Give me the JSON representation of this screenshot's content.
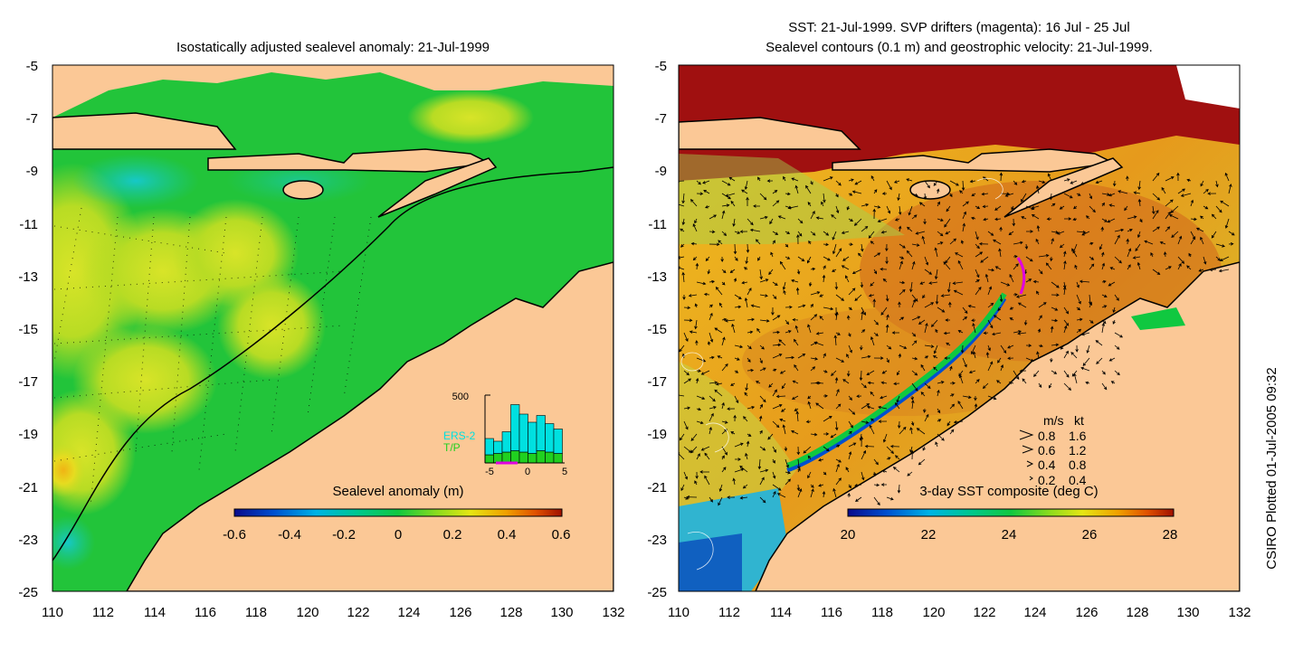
{
  "left_panel": {
    "title": "Isostatically adjusted sealevel anomaly: 21-Jul-1999",
    "y_ticks": [
      "-5",
      "-7",
      "-9",
      "-11",
      "-13",
      "-15",
      "-17",
      "-19",
      "-21",
      "-23",
      "-25"
    ],
    "x_ticks": [
      "110",
      "112",
      "114",
      "116",
      "118",
      "120",
      "122",
      "124",
      "126",
      "128",
      "130",
      "132"
    ],
    "colorbar": {
      "label": "Sealevel anomaly (m)",
      "ticks": [
        "-0.6",
        "-0.4",
        "-0.2",
        "0",
        "0.2",
        "0.4",
        "0.6"
      ],
      "colors": [
        "#0a0a8c",
        "#0050d0",
        "#00b4e6",
        "#00c88c",
        "#10c840",
        "#8cdc1e",
        "#e6e614",
        "#f0a000",
        "#e05000",
        "#a01000"
      ]
    },
    "histogram": {
      "y_max_label": "500",
      "x_ticks": [
        "-5",
        "0",
        "5"
      ],
      "legend": [
        {
          "label": "ERS-2",
          "color": "#00e0e0"
        },
        {
          "label": "T/P",
          "color": "#20d020"
        }
      ],
      "ers2_counts": [
        120,
        90,
        150,
        340,
        280,
        230,
        260,
        210,
        180
      ],
      "tp_counts": [
        60,
        70,
        80,
        90,
        80,
        70,
        90,
        80,
        70
      ],
      "drifter_color": "#e000e0"
    }
  },
  "right_panel": {
    "title_line1": "SST: 21-Jul-1999. SVP drifters (magenta): 16 Jul - 25 Jul",
    "title_line2": "Sealevel contours (0.1 m) and geostrophic velocity: 21-Jul-1999.",
    "y_ticks": [
      "-5",
      "-7",
      "-9",
      "-11",
      "-13",
      "-15",
      "-17",
      "-19",
      "-21",
      "-23",
      "-25"
    ],
    "x_ticks": [
      "110",
      "112",
      "114",
      "116",
      "118",
      "120",
      "122",
      "124",
      "126",
      "128",
      "130",
      "132"
    ],
    "colorbar": {
      "label": "3-day SST composite (deg C)",
      "ticks": [
        "20",
        "22",
        "24",
        "26",
        "28"
      ],
      "colors": [
        "#0a0a8c",
        "#0050d0",
        "#00b4e6",
        "#00c88c",
        "#10c840",
        "#8cdc1e",
        "#e6e614",
        "#f0a000",
        "#e05000",
        "#a01000"
      ]
    },
    "velocity_legend": {
      "header_ms": "m/s",
      "header_kt": "kt",
      "rows": [
        {
          "ms": "0.8",
          "kt": "1.6"
        },
        {
          "ms": "0.6",
          "kt": "1.2"
        },
        {
          "ms": "0.4",
          "kt": "0.8"
        },
        {
          "ms": "0.2",
          "kt": "0.4"
        }
      ]
    }
  },
  "credit": "CSIRO Plotted 01-Jul-2005 09:32",
  "colors": {
    "land": "#fbc896",
    "ssh_background": "#22c43a",
    "sst_background": "#e88a1e",
    "north_sst": "#a01010"
  }
}
